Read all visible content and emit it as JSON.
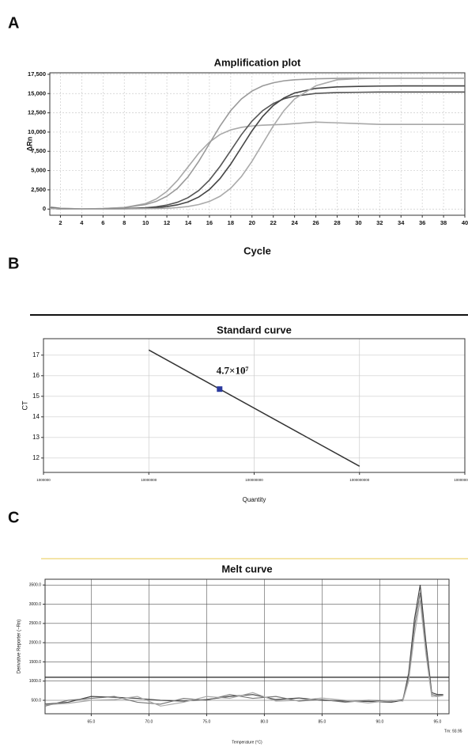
{
  "chart_data": [
    {
      "panel": "A",
      "type": "line",
      "title": "Amplification plot",
      "xlabel": "Cycle",
      "ylabel": "ΔRn",
      "x": [
        1,
        2,
        4,
        6,
        8,
        10,
        11,
        12,
        13,
        14,
        15,
        16,
        17,
        18,
        19,
        20,
        21,
        22,
        23,
        24,
        26,
        28,
        30,
        32,
        34,
        36,
        38,
        40
      ],
      "xlim": [
        1,
        40
      ],
      "xticks": [
        2,
        4,
        6,
        8,
        10,
        12,
        14,
        16,
        18,
        20,
        22,
        24,
        26,
        28,
        30,
        32,
        34,
        36,
        38,
        40
      ],
      "ylim": [
        -800,
        17700
      ],
      "yticks": [
        0,
        {
          "value": 2500,
          "label": "2,500"
        },
        {
          "value": 5000,
          "label": "5,000"
        },
        {
          "value": 7500,
          "label": "7,500"
        },
        {
          "value": 10000,
          "label": "10,000"
        },
        {
          "value": 12500,
          "label": "12,500"
        },
        {
          "value": 15000,
          "label": "15,000"
        },
        {
          "value": 17500,
          "label": "17,500"
        }
      ],
      "grid": true,
      "series": [
        {
          "color": "#a8a8a8",
          "values": [
            300,
            100,
            14,
            53,
            198,
            715,
            1309,
            2299,
            3729,
            5500,
            7271,
            8701,
            9691,
            10285,
            10615,
            10802,
            10901,
            10945,
            11000,
            11100,
            11300,
            11200,
            11100,
            11000,
            11000,
            11000,
            11000,
            11000
          ]
        },
        {
          "color": "#9a9a9a",
          "values": [
            200,
            100,
            20,
            65,
            198,
            587,
            994,
            1667,
            2698,
            4208,
            6205,
            8500,
            10795,
            12792,
            14302,
            15333,
            16006,
            16405,
            16660,
            16796,
            16920,
            16970,
            17000,
            17000,
            17000,
            17000,
            17000,
            17000
          ]
        },
        {
          "color": "#555555",
          "values": [
            150,
            50,
            0,
            20,
            60,
            176,
            304,
            524,
            889,
            1490,
            2417,
            3770,
            5548,
            7600,
            9652,
            11430,
            12783,
            13710,
            14318,
            14668,
            15018,
            15139,
            15170,
            15200,
            15200,
            15200,
            15200,
            15200
          ]
        },
        {
          "color": "#444444",
          "values": [
            100,
            0,
            0,
            10,
            40,
            100,
            186,
            320,
            552,
            936,
            1568,
            2544,
            3968,
            5840,
            8000,
            10160,
            12032,
            13456,
            14432,
            15072,
            15680,
            15872,
            15936,
            15980,
            16000,
            16000,
            16000,
            16000
          ]
        },
        {
          "color": "#aaaaaa",
          "values": [
            100,
            0,
            0,
            0,
            20,
            50,
            70,
            100,
            197,
            340,
            587,
            995,
            1666,
            2703,
            4216,
            6205,
            8500,
            10795,
            12784,
            14297,
            16014,
            16796,
            16932,
            17000,
            17000,
            17000,
            17000,
            17000
          ]
        }
      ]
    },
    {
      "panel": "B",
      "type": "scatter",
      "title": "Standard curve",
      "xlabel": "Quantity",
      "ylabel": "CT",
      "xscale": "log",
      "xlim": [
        1000000,
        10000000000
      ],
      "xticks": [
        1000000,
        10000000,
        100000000,
        1000000000,
        10000000000
      ],
      "ylim": [
        11.3,
        17.8
      ],
      "yticks": [
        12,
        13,
        14,
        15,
        16,
        17
      ],
      "grid": true,
      "series": [
        {
          "mode": "line",
          "color": "#333333",
          "x": [
            10000000,
            1000000000
          ],
          "values": [
            17.25,
            11.6
          ]
        },
        {
          "mode": "marker",
          "color": "#2b3a9e",
          "x": [
            47000000
          ],
          "values": [
            15.35
          ]
        }
      ],
      "annotation": "4.7×10⁷"
    },
    {
      "panel": "C",
      "type": "line",
      "title": "Melt curve",
      "xlabel": "Temperature (°C)",
      "ylabel": "Derivative Reporter (−Rn)",
      "x": [
        61,
        63,
        65,
        67,
        69,
        71,
        73,
        75,
        77,
        79,
        81,
        83,
        85,
        87,
        89,
        91,
        92,
        92.5,
        93,
        93.5,
        94,
        94.5,
        95,
        95.5
      ],
      "xlim": [
        61,
        96
      ],
      "xticks": [
        {
          "value": 65,
          "label": "65.0"
        },
        {
          "value": 70,
          "label": "70.0"
        },
        {
          "value": 75,
          "label": "75.0"
        },
        {
          "value": 80,
          "label": "80.0"
        },
        {
          "value": 85,
          "label": "85.0"
        },
        {
          "value": 90,
          "label": "90.0"
        },
        {
          "value": 95,
          "label": "95.0"
        }
      ],
      "ylim": [
        150,
        3650
      ],
      "yticks": [
        {
          "value": 500,
          "label": "500.0"
        },
        {
          "value": 1000,
          "label": "1000.0"
        },
        {
          "value": 1500,
          "label": "1500.0"
        },
        {
          "value": 2000,
          "label": "2000.0"
        },
        {
          "value": 2500,
          "label": "2500.0"
        },
        {
          "value": 3000,
          "label": "3000.0"
        },
        {
          "value": 3500,
          "label": "3500.0"
        }
      ],
      "grid": true,
      "threshold": 1100,
      "tm_label": "Tm: 93.95",
      "series": [
        {
          "color": "#444444",
          "values": [
            400,
            450,
            600,
            580,
            550,
            500,
            480,
            520,
            600,
            650,
            520,
            560,
            500,
            480,
            470,
            450,
            500,
            1200,
            2600,
            3500,
            2000,
            700,
            650,
            650
          ]
        },
        {
          "color": "#777777",
          "values": [
            350,
            500,
            550,
            600,
            450,
            400,
            550,
            500,
            650,
            550,
            600,
            480,
            520,
            450,
            500,
            480,
            520,
            1100,
            2400,
            3300,
            1800,
            650,
            620,
            640
          ]
        },
        {
          "color": "#aaaaaa",
          "values": [
            380,
            420,
            500,
            520,
            600,
            350,
            450,
            600,
            550,
            700,
            480,
            500,
            560,
            500,
            430,
            500,
            480,
            1000,
            2200,
            3100,
            1700,
            600,
            600,
            620
          ]
        }
      ]
    }
  ]
}
